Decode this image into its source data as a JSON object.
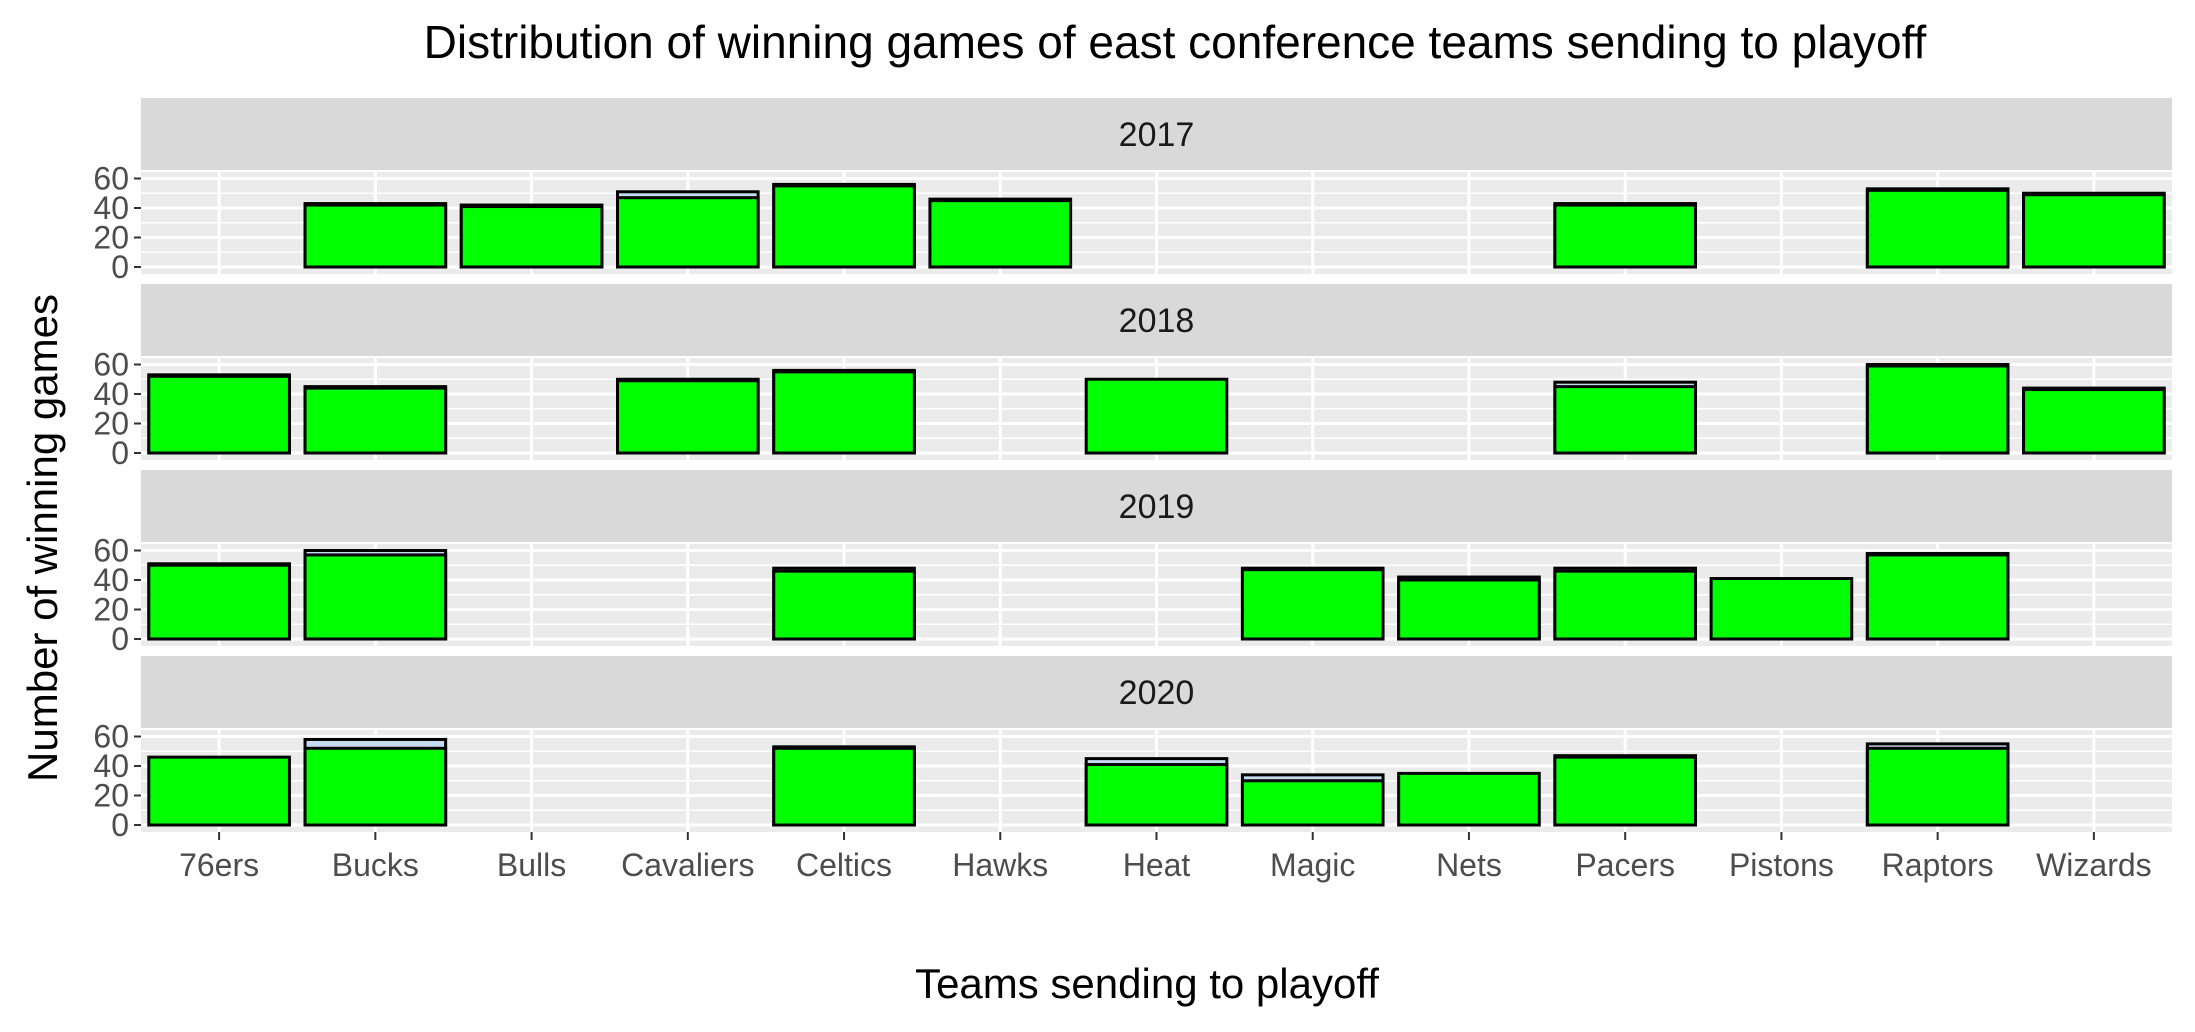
{
  "chart_data": {
    "type": "bar",
    "title": "Distribution of winning games of east conference teams sending to playoff",
    "xlabel": "Teams sending to playoff",
    "ylabel": "Number of winning games",
    "categories": [
      "76ers",
      "Bucks",
      "Bulls",
      "Cavaliers",
      "Celtics",
      "Hawks",
      "Heat",
      "Magic",
      "Nets",
      "Pacers",
      "Pistons",
      "Raptors",
      "Wizards"
    ],
    "ylim": [
      0,
      80
    ],
    "yticks": [
      0,
      20,
      40,
      60
    ],
    "grid": true,
    "colors": {
      "bar_fill": "#00ff00",
      "bar_back": "#c6dbef",
      "bar_stroke": "#000000",
      "panel_bg": "#ebebeb",
      "strip_bg": "#d9d9d9",
      "grid": "#ffffff"
    },
    "facets": [
      {
        "label": "2017",
        "values": [
          null,
          42,
          41,
          47,
          55,
          45,
          null,
          null,
          null,
          42,
          null,
          52,
          49
        ],
        "upper": [
          null,
          43,
          42,
          51,
          56,
          46,
          null,
          null,
          null,
          43,
          null,
          53,
          50
        ]
      },
      {
        "label": "2018",
        "values": [
          52,
          44,
          null,
          49,
          55,
          null,
          50,
          null,
          null,
          45,
          null,
          59,
          43
        ],
        "upper": [
          53,
          45,
          null,
          50,
          56,
          null,
          50,
          null,
          null,
          48,
          null,
          60,
          44
        ]
      },
      {
        "label": "2019",
        "values": [
          50,
          57,
          null,
          null,
          46,
          null,
          null,
          47,
          40,
          46,
          41,
          57,
          null
        ],
        "upper": [
          51,
          60,
          null,
          null,
          48,
          null,
          null,
          48,
          42,
          48,
          41,
          58,
          null
        ]
      },
      {
        "label": "2020",
        "values": [
          46,
          52,
          null,
          null,
          52,
          null,
          41,
          30,
          35,
          46,
          null,
          52,
          null
        ],
        "upper": [
          46,
          58,
          null,
          null,
          53,
          null,
          45,
          34,
          35,
          47,
          null,
          55,
          null
        ]
      }
    ]
  }
}
